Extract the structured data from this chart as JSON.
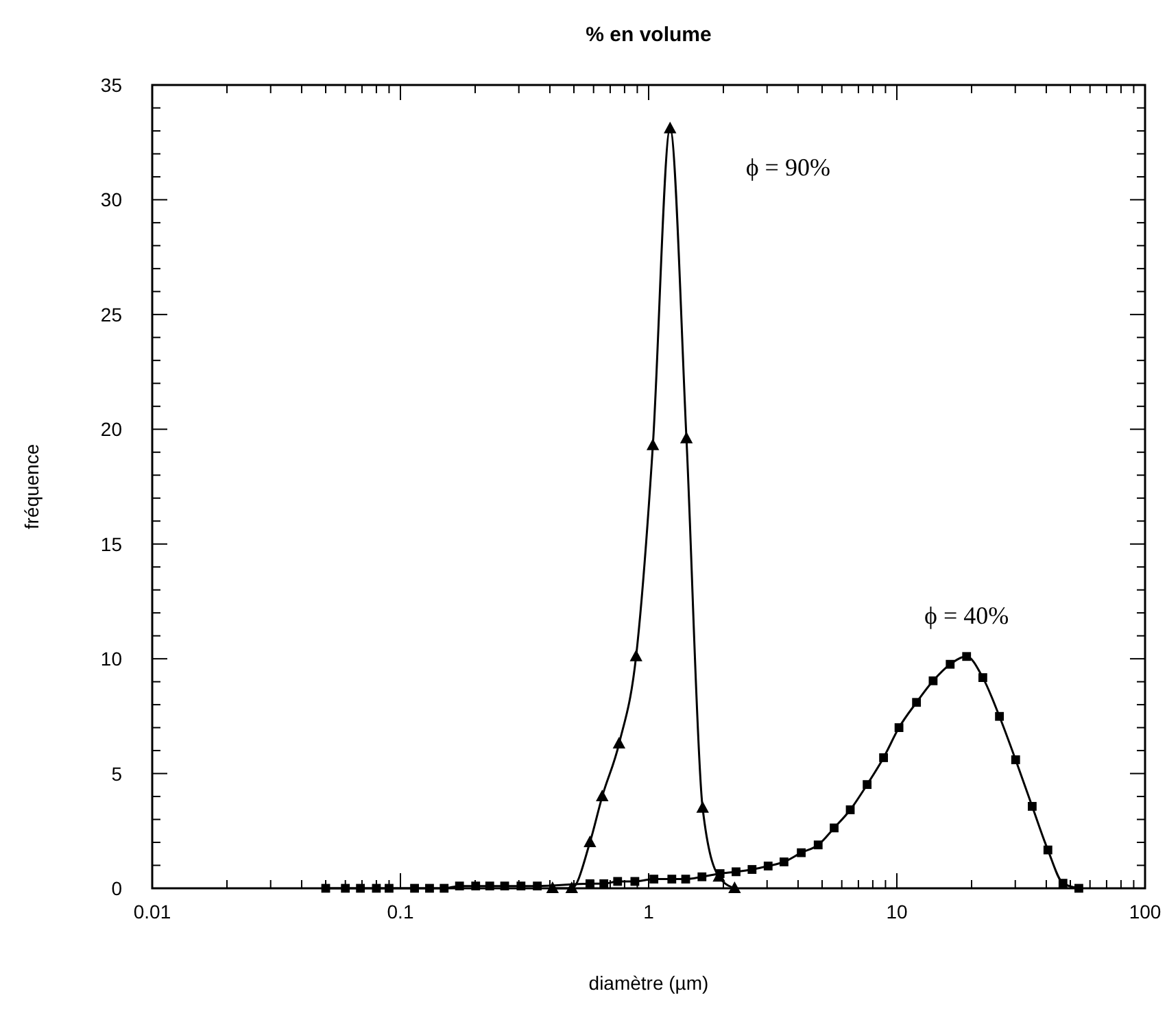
{
  "chart_data": {
    "type": "line",
    "title": "% en volume",
    "xlabel": "diamètre (µm)",
    "ylabel": "fréquence",
    "log": "x",
    "xlim": [
      0.01,
      100
    ],
    "ylim": [
      0,
      35
    ],
    "xticks": [
      0.01,
      {
        "value": 0.02,
        "label": null
      },
      {
        "value": 0.03,
        "label": null
      },
      {
        "value": 0.04,
        "label": null
      },
      {
        "value": 0.05,
        "label": null
      },
      {
        "value": 0.06,
        "label": null
      },
      {
        "value": 0.07,
        "label": null
      },
      {
        "value": 0.08,
        "label": null
      },
      {
        "value": 0.09,
        "label": null
      },
      0.1,
      {
        "value": 0.2,
        "label": null
      },
      {
        "value": 0.3,
        "label": null
      },
      {
        "value": 0.4,
        "label": null
      },
      {
        "value": 0.5,
        "label": null
      },
      {
        "value": 0.6,
        "label": null
      },
      {
        "value": 0.7,
        "label": null
      },
      {
        "value": 0.8,
        "label": null
      },
      {
        "value": 0.9,
        "label": null
      },
      1,
      {
        "value": 2,
        "label": null
      },
      {
        "value": 3,
        "label": null
      },
      {
        "value": 4,
        "label": null
      },
      {
        "value": 5,
        "label": null
      },
      {
        "value": 6,
        "label": null
      },
      {
        "value": 7,
        "label": null
      },
      {
        "value": 8,
        "label": null
      },
      {
        "value": 9,
        "label": null
      },
      10,
      {
        "value": 20,
        "label": null
      },
      {
        "value": 30,
        "label": null
      },
      {
        "value": 40,
        "label": null
      },
      {
        "value": 50,
        "label": null
      },
      {
        "value": 60,
        "label": null
      },
      {
        "value": 70,
        "label": null
      },
      {
        "value": 80,
        "label": null
      },
      {
        "value": 90,
        "label": null
      },
      100
    ],
    "yticks": [
      0,
      {
        "value": 1,
        "label": null
      },
      {
        "value": 2,
        "label": null
      },
      {
        "value": 3,
        "label": null
      },
      {
        "value": 4,
        "label": null
      },
      5,
      {
        "value": 6,
        "label": null
      },
      {
        "value": 7,
        "label": null
      },
      {
        "value": 8,
        "label": null
      },
      {
        "value": 9,
        "label": null
      },
      10,
      {
        "value": 11,
        "label": null
      },
      {
        "value": 12,
        "label": null
      },
      {
        "value": 13,
        "label": null
      },
      {
        "value": 14,
        "label": null
      },
      15,
      {
        "value": 16,
        "label": null
      },
      {
        "value": 17,
        "label": null
      },
      {
        "value": 18,
        "label": null
      },
      {
        "value": 19,
        "label": null
      },
      20,
      {
        "value": 21,
        "label": null
      },
      {
        "value": 22,
        "label": null
      },
      {
        "value": 23,
        "label": null
      },
      {
        "value": 24,
        "label": null
      },
      25,
      {
        "value": 26,
        "label": null
      },
      {
        "value": 27,
        "label": null
      },
      {
        "value": 28,
        "label": null
      },
      {
        "value": 29,
        "label": null
      },
      30,
      {
        "value": 31,
        "label": null
      },
      {
        "value": 32,
        "label": null
      },
      {
        "value": 33,
        "label": null
      },
      {
        "value": 34,
        "label": null
      },
      35
    ],
    "grid": false,
    "series": [
      {
        "name": "ϕ = 90%",
        "color": "#000000",
        "marker": "triangle",
        "x": [
          0.41,
          0.49,
          0.58,
          0.65,
          0.76,
          0.89,
          1.04,
          1.22,
          1.42,
          1.65,
          1.92,
          2.22
        ],
        "values": [
          0,
          0,
          2.0,
          4.0,
          6.3,
          10.1,
          19.3,
          33.1,
          19.6,
          3.5,
          0.5,
          0
        ]
      },
      {
        "name": "ϕ = 40%",
        "color": "#000000",
        "marker": "square",
        "x": [
          0.05,
          0.06,
          0.069,
          0.08,
          0.09,
          0.114,
          0.131,
          0.15,
          0.173,
          0.201,
          0.229,
          0.263,
          0.306,
          0.356,
          0.58,
          0.66,
          0.75,
          0.88,
          1.05,
          1.24,
          1.41,
          1.64,
          1.94,
          2.25,
          2.61,
          3.03,
          3.51,
          4.12,
          4.82,
          5.59,
          6.49,
          7.59,
          8.84,
          10.2,
          12.0,
          14.0,
          16.4,
          19.1,
          22.2,
          25.9,
          30.1,
          35.1,
          40.6,
          46.7,
          54.1
        ],
        "values": [
          0,
          0,
          0,
          0,
          0,
          0,
          0,
          0,
          0.1,
          0.1,
          0.1,
          0.1,
          0.1,
          0.1,
          0.2,
          0.2,
          0.3,
          0.3,
          0.4,
          0.4,
          0.4,
          0.5,
          0.64,
          0.72,
          0.82,
          0.97,
          1.15,
          1.55,
          1.89,
          2.63,
          3.42,
          4.52,
          5.69,
          7.0,
          8.1,
          9.04,
          9.76,
          10.1,
          9.18,
          7.49,
          5.6,
          3.57,
          1.67,
          0.22,
          0
        ]
      }
    ]
  }
}
